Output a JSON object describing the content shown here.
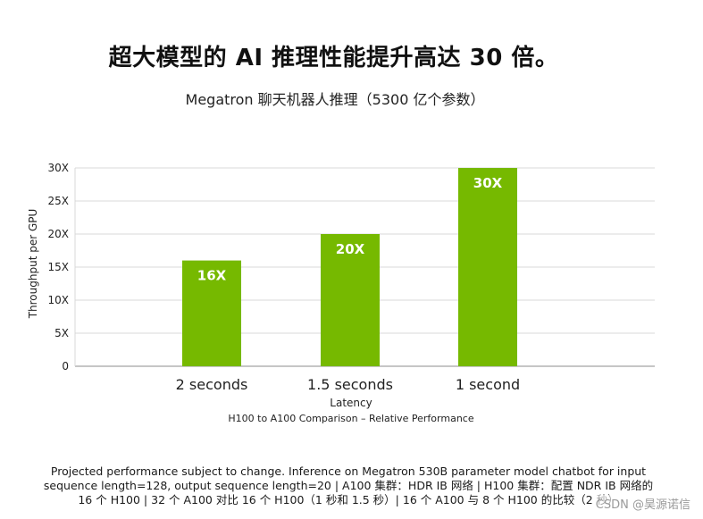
{
  "headline": "超大模型的 AI 推理性能提升高达 30 倍。",
  "chart_data": {
    "type": "bar",
    "title": "Megatron 聊天机器人推理（5300 亿个参数）",
    "subtitle": "H100 to A100 Comparison – Relative Performance",
    "xlabel": "Latency",
    "ylabel": "Throughput per GPU",
    "categories": [
      "2 seconds",
      "1.5 seconds",
      "1 second"
    ],
    "values": [
      16,
      20,
      30
    ],
    "data_labels": [
      "16X",
      "20X",
      "30X"
    ],
    "ylim": [
      0,
      30
    ],
    "yticks": [
      0,
      5,
      10,
      15,
      20,
      25,
      30
    ],
    "ytick_labels": [
      "0",
      "5X",
      "10X",
      "15X",
      "20X",
      "25X",
      "30X"
    ],
    "grid": true,
    "bar_color": "#76b900",
    "grid_color": "#d9d9d9"
  },
  "footnote": {
    "line1": "Projected performance subject to change. Inference on Megatron 530B parameter model chatbot for input",
    "line2": "sequence length=128, output sequence length=20 | A100 集群：HDR IB 网络 | H100 集群：配置 NDR IB 网络的",
    "line3": "16 个 H100 | 32 个 A100 对比 16 个 H100（1 秒和 1.5 秒）| 16 个 A100 与 8 个 H100 的比较（2 秒）"
  },
  "watermark": "CSDN @昊源诺信"
}
